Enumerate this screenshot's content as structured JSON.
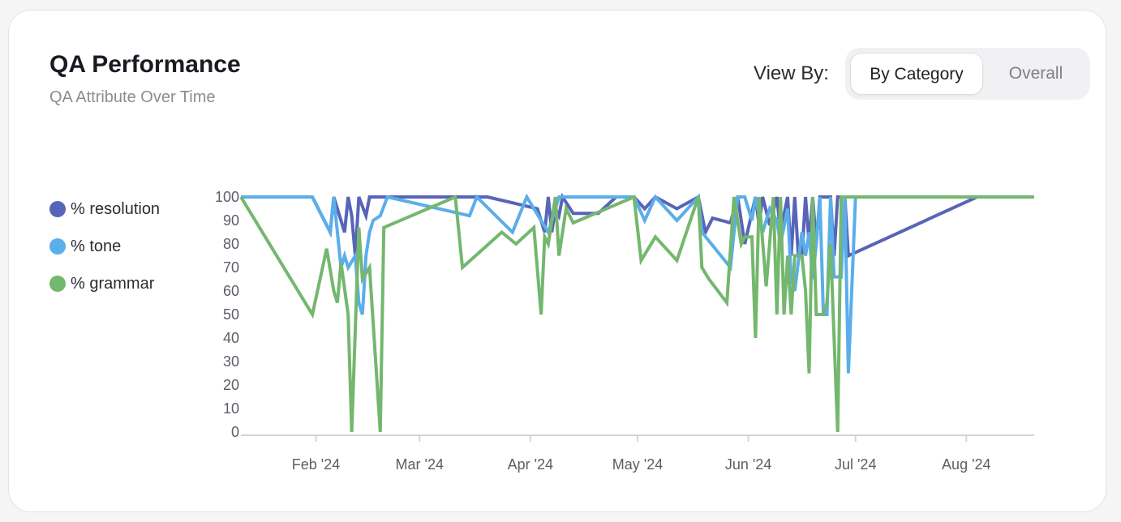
{
  "header": {
    "title": "QA Performance",
    "subtitle": "QA Attribute Over Time"
  },
  "view_by": {
    "label": "View By:",
    "options": [
      "By Category",
      "Overall"
    ],
    "selected": "By Category"
  },
  "colors": {
    "resolution": "#5864b7",
    "tone": "#5aaeea",
    "grammar": "#74b76e",
    "axis": "#d3d5da"
  },
  "chart_data": {
    "type": "line",
    "x_type": "date",
    "xlim": [
      "2024-01-11",
      "2024-08-20"
    ],
    "ylim": [
      0,
      100
    ],
    "yticks": [
      0,
      10,
      20,
      30,
      40,
      50,
      60,
      70,
      80,
      90,
      100
    ],
    "xticks": [
      {
        "date": "2024-02-01",
        "label": "Feb '24"
      },
      {
        "date": "2024-03-01",
        "label": "Mar '24"
      },
      {
        "date": "2024-04-01",
        "label": "Apr '24"
      },
      {
        "date": "2024-05-01",
        "label": "May '24"
      },
      {
        "date": "2024-06-01",
        "label": "Jun '24"
      },
      {
        "date": "2024-07-01",
        "label": "Jul '24"
      },
      {
        "date": "2024-08-01",
        "label": "Aug '24"
      }
    ],
    "legend_position": "left",
    "series": [
      {
        "name": "% resolution",
        "color_key": "resolution",
        "points": [
          [
            "2024-01-11",
            100
          ],
          [
            "2024-01-31",
            100
          ],
          [
            "2024-02-05",
            85
          ],
          [
            "2024-02-06",
            100
          ],
          [
            "2024-02-08",
            90
          ],
          [
            "2024-02-09",
            85
          ],
          [
            "2024-02-10",
            100
          ],
          [
            "2024-02-11",
            92
          ],
          [
            "2024-02-12",
            75
          ],
          [
            "2024-02-13",
            100
          ],
          [
            "2024-02-15",
            92
          ],
          [
            "2024-02-16",
            100
          ],
          [
            "2024-02-20",
            100
          ],
          [
            "2024-03-10",
            100
          ],
          [
            "2024-03-20",
            100
          ],
          [
            "2024-04-03",
            95
          ],
          [
            "2024-04-05",
            85
          ],
          [
            "2024-04-06",
            100
          ],
          [
            "2024-04-07",
            85
          ],
          [
            "2024-04-08",
            95
          ],
          [
            "2024-04-09",
            92
          ],
          [
            "2024-04-10",
            100
          ],
          [
            "2024-04-13",
            93
          ],
          [
            "2024-04-20",
            93
          ],
          [
            "2024-04-25",
            100
          ],
          [
            "2024-04-30",
            100
          ],
          [
            "2024-05-03",
            95
          ],
          [
            "2024-05-06",
            100
          ],
          [
            "2024-05-12",
            95
          ],
          [
            "2024-05-18",
            100
          ],
          [
            "2024-05-20",
            85
          ],
          [
            "2024-05-22",
            91
          ],
          [
            "2024-05-27",
            89
          ],
          [
            "2024-05-29",
            100
          ],
          [
            "2024-05-31",
            80
          ],
          [
            "2024-06-03",
            100
          ],
          [
            "2024-06-04",
            88
          ],
          [
            "2024-06-05",
            100
          ],
          [
            "2024-06-07",
            88
          ],
          [
            "2024-06-09",
            100
          ],
          [
            "2024-06-10",
            85
          ],
          [
            "2024-06-12",
            100
          ],
          [
            "2024-06-13",
            75
          ],
          [
            "2024-06-14",
            100
          ],
          [
            "2024-06-15",
            75
          ],
          [
            "2024-06-16",
            75
          ],
          [
            "2024-06-17",
            100
          ],
          [
            "2024-06-18",
            80
          ],
          [
            "2024-06-19",
            100
          ],
          [
            "2024-06-20",
            80
          ],
          [
            "2024-06-21",
            100
          ],
          [
            "2024-06-24",
            100
          ],
          [
            "2024-06-25",
            75
          ],
          [
            "2024-06-26",
            100
          ],
          [
            "2024-06-28",
            100
          ],
          [
            "2024-06-29",
            75
          ],
          [
            "2024-08-04",
            100
          ],
          [
            "2024-08-20",
            100
          ]
        ]
      },
      {
        "name": "% tone",
        "color_key": "tone",
        "points": [
          [
            "2024-01-11",
            100
          ],
          [
            "2024-01-31",
            100
          ],
          [
            "2024-02-05",
            85
          ],
          [
            "2024-02-06",
            100
          ],
          [
            "2024-02-08",
            70
          ],
          [
            "2024-02-09",
            75
          ],
          [
            "2024-02-10",
            70
          ],
          [
            "2024-02-12",
            75
          ],
          [
            "2024-02-13",
            55
          ],
          [
            "2024-02-14",
            50
          ],
          [
            "2024-02-15",
            75
          ],
          [
            "2024-02-16",
            85
          ],
          [
            "2024-02-17",
            90
          ],
          [
            "2024-02-19",
            92
          ],
          [
            "2024-02-21",
            100
          ],
          [
            "2024-03-15",
            92
          ],
          [
            "2024-03-17",
            100
          ],
          [
            "2024-03-27",
            85
          ],
          [
            "2024-03-31",
            100
          ],
          [
            "2024-04-06",
            85
          ],
          [
            "2024-04-07",
            90
          ],
          [
            "2024-04-09",
            100
          ],
          [
            "2024-04-30",
            100
          ],
          [
            "2024-05-03",
            90
          ],
          [
            "2024-05-06",
            100
          ],
          [
            "2024-05-12",
            90
          ],
          [
            "2024-05-18",
            100
          ],
          [
            "2024-05-19",
            85
          ],
          [
            "2024-05-27",
            70
          ],
          [
            "2024-05-29",
            100
          ],
          [
            "2024-05-31",
            100
          ],
          [
            "2024-06-02",
            90
          ],
          [
            "2024-06-03",
            100
          ],
          [
            "2024-06-05",
            85
          ],
          [
            "2024-06-07",
            95
          ],
          [
            "2024-06-09",
            90
          ],
          [
            "2024-06-10",
            80
          ],
          [
            "2024-06-12",
            95
          ],
          [
            "2024-06-13",
            65
          ],
          [
            "2024-06-14",
            60
          ],
          [
            "2024-06-16",
            85
          ],
          [
            "2024-06-17",
            75
          ],
          [
            "2024-06-18",
            85
          ],
          [
            "2024-06-19",
            65
          ],
          [
            "2024-06-20",
            80
          ],
          [
            "2024-06-21",
            100
          ],
          [
            "2024-06-22",
            50
          ],
          [
            "2024-06-23",
            50
          ],
          [
            "2024-06-24",
            100
          ],
          [
            "2024-06-25",
            66
          ],
          [
            "2024-06-26",
            66
          ],
          [
            "2024-06-27",
            66
          ],
          [
            "2024-06-28",
            100
          ],
          [
            "2024-06-29",
            25
          ],
          [
            "2024-07-01",
            100
          ],
          [
            "2024-08-20",
            100
          ]
        ]
      },
      {
        "name": "% grammar",
        "color_key": "grammar",
        "points": [
          [
            "2024-01-11",
            100
          ],
          [
            "2024-01-31",
            50
          ],
          [
            "2024-02-04",
            78
          ],
          [
            "2024-02-06",
            60
          ],
          [
            "2024-02-07",
            55
          ],
          [
            "2024-02-08",
            72
          ],
          [
            "2024-02-10",
            50
          ],
          [
            "2024-02-11",
            0
          ],
          [
            "2024-02-13",
            87
          ],
          [
            "2024-02-14",
            65
          ],
          [
            "2024-02-16",
            70
          ],
          [
            "2024-02-19",
            0
          ],
          [
            "2024-02-20",
            87
          ],
          [
            "2024-03-11",
            100
          ],
          [
            "2024-03-13",
            70
          ],
          [
            "2024-03-24",
            85
          ],
          [
            "2024-03-28",
            80
          ],
          [
            "2024-04-02",
            87
          ],
          [
            "2024-04-04",
            50
          ],
          [
            "2024-04-05",
            83
          ],
          [
            "2024-04-06",
            80
          ],
          [
            "2024-04-08",
            100
          ],
          [
            "2024-04-09",
            75
          ],
          [
            "2024-04-11",
            95
          ],
          [
            "2024-04-13",
            89
          ],
          [
            "2024-04-30",
            100
          ],
          [
            "2024-05-02",
            73
          ],
          [
            "2024-05-06",
            83
          ],
          [
            "2024-05-12",
            73
          ],
          [
            "2024-05-18",
            100
          ],
          [
            "2024-05-19",
            70
          ],
          [
            "2024-05-21",
            65
          ],
          [
            "2024-05-26",
            55
          ],
          [
            "2024-05-28",
            100
          ],
          [
            "2024-05-30",
            80
          ],
          [
            "2024-05-31",
            83
          ],
          [
            "2024-06-02",
            83
          ],
          [
            "2024-06-03",
            40
          ],
          [
            "2024-06-04",
            100
          ],
          [
            "2024-06-06",
            62
          ],
          [
            "2024-06-08",
            100
          ],
          [
            "2024-06-09",
            50
          ],
          [
            "2024-06-10",
            100
          ],
          [
            "2024-06-11",
            50
          ],
          [
            "2024-06-12",
            75
          ],
          [
            "2024-06-13",
            50
          ],
          [
            "2024-06-14",
            75
          ],
          [
            "2024-06-16",
            75
          ],
          [
            "2024-06-17",
            60
          ],
          [
            "2024-06-18",
            25
          ],
          [
            "2024-06-19",
            100
          ],
          [
            "2024-06-20",
            50
          ],
          [
            "2024-06-21",
            50
          ],
          [
            "2024-06-22",
            50
          ],
          [
            "2024-06-23",
            55
          ],
          [
            "2024-06-24",
            80
          ],
          [
            "2024-06-26",
            0
          ],
          [
            "2024-06-27",
            100
          ],
          [
            "2024-08-20",
            100
          ]
        ]
      }
    ]
  }
}
